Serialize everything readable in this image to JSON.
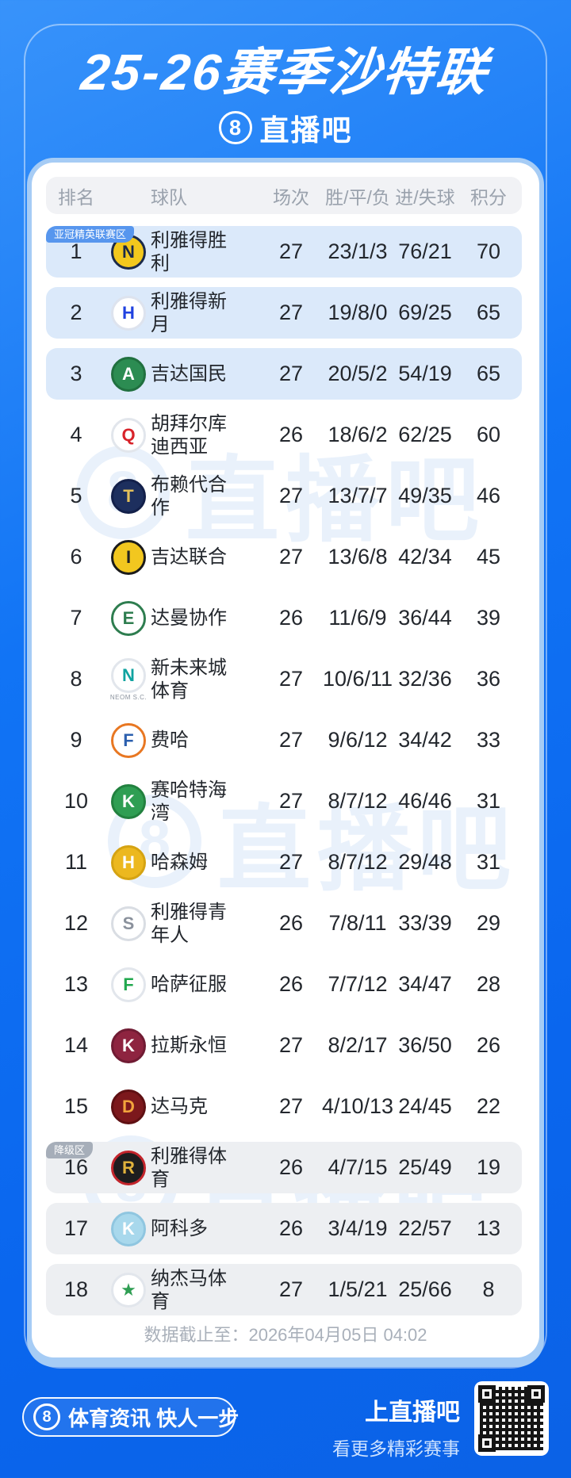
{
  "page": {
    "title": "25-26赛季沙特联"
  },
  "brand": {
    "glyph": "8",
    "name": "直播吧"
  },
  "table": {
    "headers": [
      "排名",
      "球队",
      "场次",
      "胜/平/负",
      "进/失球",
      "积分"
    ],
    "rows": [
      {
        "rank": "1",
        "name": "利雅得胜利",
        "played": "27",
        "wdl": "23/1/3",
        "goals": "76/21",
        "points": "70",
        "zone": "acl",
        "badge": "亚冠精英联赛区",
        "logo": {
          "bg": "#f3c81d",
          "fg": "#1b2a4a",
          "bd": "#1b2a4a",
          "glyph": "N",
          "caption": ""
        }
      },
      {
        "rank": "2",
        "name": "利雅得新月",
        "played": "27",
        "wdl": "19/8/0",
        "goals": "69/25",
        "points": "65",
        "zone": "acl",
        "badge": "",
        "logo": {
          "bg": "#ffffff",
          "fg": "#2042e0",
          "bd": "#dde3ee",
          "glyph": "H",
          "caption": ""
        }
      },
      {
        "rank": "3",
        "name": "吉达国民",
        "played": "27",
        "wdl": "20/5/2",
        "goals": "54/19",
        "points": "65",
        "zone": "acl",
        "badge": "",
        "logo": {
          "bg": "#2c8c52",
          "fg": "#ffffff",
          "bd": "#20703f",
          "glyph": "A",
          "caption": ""
        }
      },
      {
        "rank": "4",
        "name": "胡拜尔库迪西亚",
        "played": "26",
        "wdl": "18/6/2",
        "goals": "62/25",
        "points": "60",
        "zone": "",
        "badge": "",
        "logo": {
          "bg": "#ffffff",
          "fg": "#d8232a",
          "bd": "#e2e6ec",
          "glyph": "Q",
          "caption": ""
        }
      },
      {
        "rank": "5",
        "name": "布赖代合作",
        "played": "27",
        "wdl": "13/7/7",
        "goals": "49/35",
        "points": "46",
        "zone": "",
        "badge": "",
        "logo": {
          "bg": "#1d2f5e",
          "fg": "#e3c05a",
          "bd": "#13204a",
          "glyph": "T",
          "caption": ""
        }
      },
      {
        "rank": "6",
        "name": "吉达联合",
        "played": "27",
        "wdl": "13/6/8",
        "goals": "42/34",
        "points": "45",
        "zone": "",
        "badge": "",
        "logo": {
          "bg": "#f2c71f",
          "fg": "#222222",
          "bd": "#1b1b1b",
          "glyph": "I",
          "caption": ""
        }
      },
      {
        "rank": "7",
        "name": "达曼协作",
        "played": "26",
        "wdl": "11/6/9",
        "goals": "36/44",
        "points": "39",
        "zone": "",
        "badge": "",
        "logo": {
          "bg": "#ffffff",
          "fg": "#2e7d4f",
          "bd": "#2e7d4f",
          "glyph": "E",
          "caption": ""
        }
      },
      {
        "rank": "8",
        "name": "新未来城体育",
        "played": "27",
        "wdl": "10/6/11",
        "goals": "32/36",
        "points": "36",
        "zone": "",
        "badge": "",
        "logo": {
          "bg": "#ffffff",
          "fg": "#10a3a0",
          "bd": "#e2e6ec",
          "glyph": "N",
          "caption": "NEOM S.C."
        }
      },
      {
        "rank": "9",
        "name": "费哈",
        "played": "27",
        "wdl": "9/6/12",
        "goals": "34/42",
        "points": "33",
        "zone": "",
        "badge": "",
        "logo": {
          "bg": "#ffffff",
          "fg": "#2b5fae",
          "bd": "#e87722",
          "glyph": "F",
          "caption": ""
        }
      },
      {
        "rank": "10",
        "name": "赛哈特海湾",
        "played": "27",
        "wdl": "8/7/12",
        "goals": "46/46",
        "points": "31",
        "zone": "",
        "badge": "",
        "logo": {
          "bg": "#2f9e53",
          "fg": "#ffffff",
          "bd": "#22813f",
          "glyph": "K",
          "caption": ""
        }
      },
      {
        "rank": "11",
        "name": "哈森姆",
        "played": "27",
        "wdl": "8/7/12",
        "goals": "29/48",
        "points": "31",
        "zone": "",
        "badge": "",
        "logo": {
          "bg": "#ecb81f",
          "fg": "#ffffff",
          "bd": "#d5a312",
          "glyph": "H",
          "caption": ""
        }
      },
      {
        "rank": "12",
        "name": "利雅得青年人",
        "played": "26",
        "wdl": "7/8/11",
        "goals": "33/39",
        "points": "29",
        "zone": "",
        "badge": "",
        "logo": {
          "bg": "#ffffff",
          "fg": "#8a919c",
          "bd": "#d9dde3",
          "glyph": "S",
          "caption": ""
        }
      },
      {
        "rank": "13",
        "name": "哈萨征服",
        "played": "26",
        "wdl": "7/7/12",
        "goals": "34/47",
        "points": "28",
        "zone": "",
        "badge": "",
        "logo": {
          "bg": "#ffffff",
          "fg": "#21a84e",
          "bd": "#e2e6ec",
          "glyph": "F",
          "caption": ""
        }
      },
      {
        "rank": "14",
        "name": "拉斯永恒",
        "played": "27",
        "wdl": "8/2/17",
        "goals": "36/50",
        "points": "26",
        "zone": "",
        "badge": "",
        "logo": {
          "bg": "#8e2440",
          "fg": "#ffffff",
          "bd": "#701b33",
          "glyph": "K",
          "caption": ""
        }
      },
      {
        "rank": "15",
        "name": "达马克",
        "played": "27",
        "wdl": "4/10/13",
        "goals": "24/45",
        "points": "22",
        "zone": "",
        "badge": "",
        "logo": {
          "bg": "#7c181c",
          "fg": "#f2a33c",
          "bd": "#5f1013",
          "glyph": "D",
          "caption": ""
        }
      },
      {
        "rank": "16",
        "name": "利雅得体育",
        "played": "26",
        "wdl": "4/7/15",
        "goals": "25/49",
        "points": "19",
        "zone": "rel",
        "badge": "降级区",
        "logo": {
          "bg": "#1d1d1f",
          "fg": "#e0b23c",
          "bd": "#c2242b",
          "glyph": "R",
          "caption": ""
        }
      },
      {
        "rank": "17",
        "name": "阿科多",
        "played": "26",
        "wdl": "3/4/19",
        "goals": "22/57",
        "points": "13",
        "zone": "rel",
        "badge": "",
        "logo": {
          "bg": "#a8d8ec",
          "fg": "#ffffff",
          "bd": "#8fc6e0",
          "glyph": "K",
          "caption": ""
        }
      },
      {
        "rank": "18",
        "name": "纳杰马体育",
        "played": "27",
        "wdl": "1/5/21",
        "goals": "25/66",
        "points": "8",
        "zone": "rel",
        "badge": "",
        "logo": {
          "bg": "#ffffff",
          "fg": "#2f9e53",
          "bd": "#e2e6ec",
          "glyph": "★",
          "caption": ""
        }
      }
    ]
  },
  "footnote": "数据截止至：2026年04月05日 04:02",
  "footer": {
    "brand_glyph": "8",
    "slogan": "体育资讯 快人一步",
    "cta_title": "上直播吧",
    "cta_sub": "看更多精彩赛事"
  },
  "watermark": {
    "glyph": "8",
    "text": "直播吧"
  },
  "colors": {
    "background_blue": "#0f6ef2",
    "row_highlight_blue": "#dbe9fa",
    "row_relegation_gray": "#edeff2",
    "badge_acl_blue": "#5796ee",
    "badge_relegation_gray": "#a6aeb9",
    "header_gray": "#f1f2f5",
    "text_dark": "#23272d",
    "text_muted": "#9aa2ad"
  }
}
